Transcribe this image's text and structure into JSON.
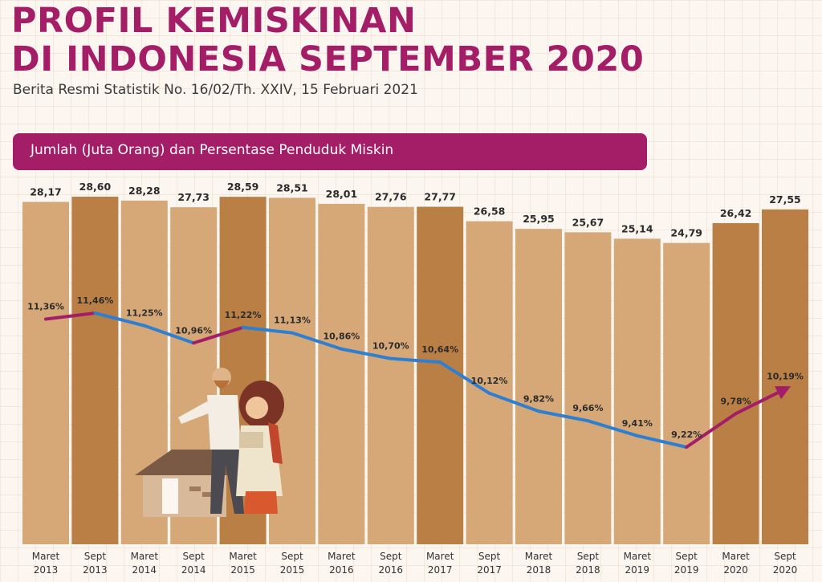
{
  "header": {
    "title_line1": "PROFIL KEMISKINAN",
    "title_line2": "DI INDONESIA SEPTEMBER 2020",
    "subtitle": "Berita Resmi Statistik No. 16/02/Th. XXIV, 15 Februari 2021"
  },
  "banner": {
    "label": "Jumlah (Juta Orang) dan Persentase Penduduk Miskin"
  },
  "colors": {
    "brand": "#a31d67",
    "bar_maret": "#d6a878",
    "bar_sept": "#b97f45",
    "line_decrease": "#2f7fd0",
    "line_increase": "#a31d67"
  },
  "chart_data": {
    "type": "bar",
    "categories": [
      [
        "Maret",
        "2013"
      ],
      [
        "Sept",
        "2013"
      ],
      [
        "Maret",
        "2014"
      ],
      [
        "Sept",
        "2014"
      ],
      [
        "Maret",
        "2015"
      ],
      [
        "Sept",
        "2015"
      ],
      [
        "Maret",
        "2016"
      ],
      [
        "Sept",
        "2016"
      ],
      [
        "Maret",
        "2017"
      ],
      [
        "Sept",
        "2017"
      ],
      [
        "Maret",
        "2018"
      ],
      [
        "Sept",
        "2018"
      ],
      [
        "Maret",
        "2019"
      ],
      [
        "Sept",
        "2019"
      ],
      [
        "Maret",
        "2020"
      ],
      [
        "Sept",
        "2020"
      ]
    ],
    "series": [
      {
        "name": "Jumlah (Juta Orang)",
        "values": [
          28.17,
          28.6,
          28.28,
          27.73,
          28.59,
          28.51,
          28.01,
          27.76,
          27.77,
          26.58,
          25.95,
          25.67,
          25.14,
          24.79,
          26.42,
          27.55
        ],
        "labels": [
          "28,17",
          "28,60",
          "28,28",
          "27,73",
          "28,59",
          "28,51",
          "28,01",
          "27,76",
          "27,77",
          "26,58",
          "25,95",
          "25,67",
          "25,14",
          "24,79",
          "26,42",
          "27,55"
        ]
      },
      {
        "name": "Persentase Penduduk Miskin",
        "type": "line",
        "values": [
          11.36,
          11.46,
          11.25,
          10.96,
          11.22,
          11.13,
          10.86,
          10.7,
          10.64,
          10.12,
          9.82,
          9.66,
          9.41,
          9.22,
          9.78,
          10.19
        ],
        "labels": [
          "11,36%",
          "11,46%",
          "11,25%",
          "10,96%",
          "11,22%",
          "11,13%",
          "10,86%",
          "10,70%",
          "10,64%",
          "10,12%",
          "9,82%",
          "9,66%",
          "9,41%",
          "9,22%",
          "9,78%",
          "10,19%"
        ]
      }
    ],
    "highlighted_bars": [
      "Sept 2013",
      "Maret 2015",
      "Maret 2017",
      "Maret 2020",
      "Sept 2020"
    ],
    "grid": false
  }
}
